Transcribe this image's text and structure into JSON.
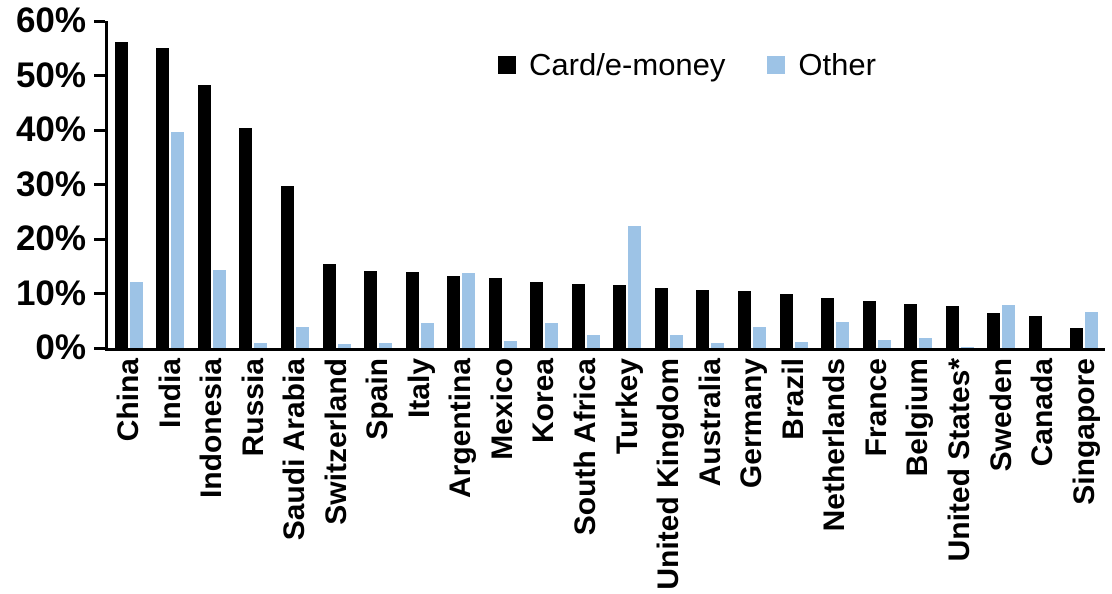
{
  "chart_data": {
    "type": "bar",
    "title": "",
    "xlabel": "",
    "ylabel": "",
    "ylim": [
      0,
      60
    ],
    "grid": false,
    "legend_position": "top-center",
    "categories": [
      "China",
      "India",
      "Indonesia",
      "Russia",
      "Saudi Arabia",
      "Switzerland",
      "Spain",
      "Italy",
      "Argentina",
      "Mexico",
      "Korea",
      "South Africa",
      "Turkey",
      "United Kingdom",
      "Australia",
      "Germany",
      "Brazil",
      "Netherlands",
      "France",
      "Belgium",
      "United States*",
      "Sweden",
      "Canada",
      "Singapore"
    ],
    "series": [
      {
        "name": "Card/e-money",
        "color": "#000000",
        "values": [
          56.1,
          55.0,
          48.3,
          40.4,
          29.8,
          15.5,
          14.1,
          14.0,
          13.3,
          12.9,
          12.2,
          11.7,
          11.6,
          11.0,
          10.7,
          10.5,
          9.9,
          9.1,
          8.6,
          8.0,
          7.8,
          6.4,
          5.9,
          3.7
        ]
      },
      {
        "name": "Other",
        "color": "#9DC3E6",
        "values": [
          12.2,
          39.6,
          14.4,
          0.9,
          3.8,
          0.7,
          0.9,
          4.5,
          13.7,
          1.3,
          4.5,
          2.4,
          22.4,
          2.3,
          0.9,
          3.9,
          1.1,
          4.8,
          1.5,
          1.9,
          0.2,
          7.9,
          0.0,
          6.6
        ]
      }
    ],
    "yticks": [
      {
        "value": 0,
        "label": "0%"
      },
      {
        "value": 10,
        "label": "10%"
      },
      {
        "value": 20,
        "label": "20%"
      },
      {
        "value": 30,
        "label": "30%"
      },
      {
        "value": 40,
        "label": "40%"
      },
      {
        "value": 50,
        "label": "50%"
      },
      {
        "value": 60,
        "label": "60%"
      }
    ]
  }
}
